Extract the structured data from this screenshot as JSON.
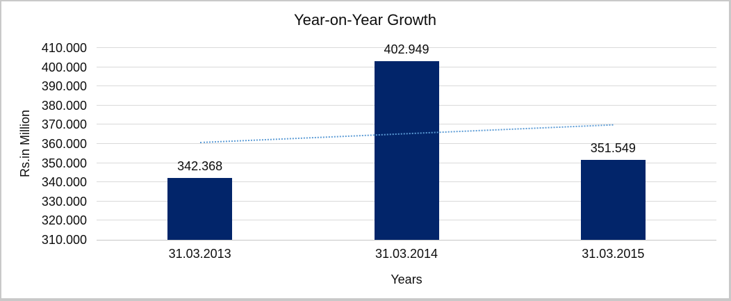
{
  "frame": {
    "background": "#ffffff",
    "border_color": "#c9c9c9"
  },
  "chart_data": {
    "type": "bar",
    "title": "Year-on-Year Growth",
    "xlabel": "Years",
    "ylabel": "Rs.in Million",
    "categories": [
      "31.03.2013",
      "31.03.2014",
      "31.03.2015"
    ],
    "values": [
      342.368,
      402.949,
      351.549
    ],
    "value_labels": [
      "342.368",
      "402.949",
      "351.549"
    ],
    "ylim": [
      310,
      410
    ],
    "ytick_interval": 10,
    "ytick_labels": [
      "410.000",
      "400.000",
      "390.000",
      "380.000",
      "370.000",
      "360.000",
      "350.000",
      "340.000",
      "330.000",
      "320.000",
      "310.000"
    ],
    "grid": true,
    "legend_position": "none",
    "colors": {
      "bar": "#02256a",
      "trendline": "#5b9bd5",
      "gridline": "#d9d9d9",
      "axis_line": "#c6c6c6",
      "text": "#0d0d0d"
    },
    "trendline": {
      "type": "linear",
      "style": "dotted",
      "color": "#5b9bd5",
      "start_value": 361.0,
      "end_value": 370.2
    }
  }
}
